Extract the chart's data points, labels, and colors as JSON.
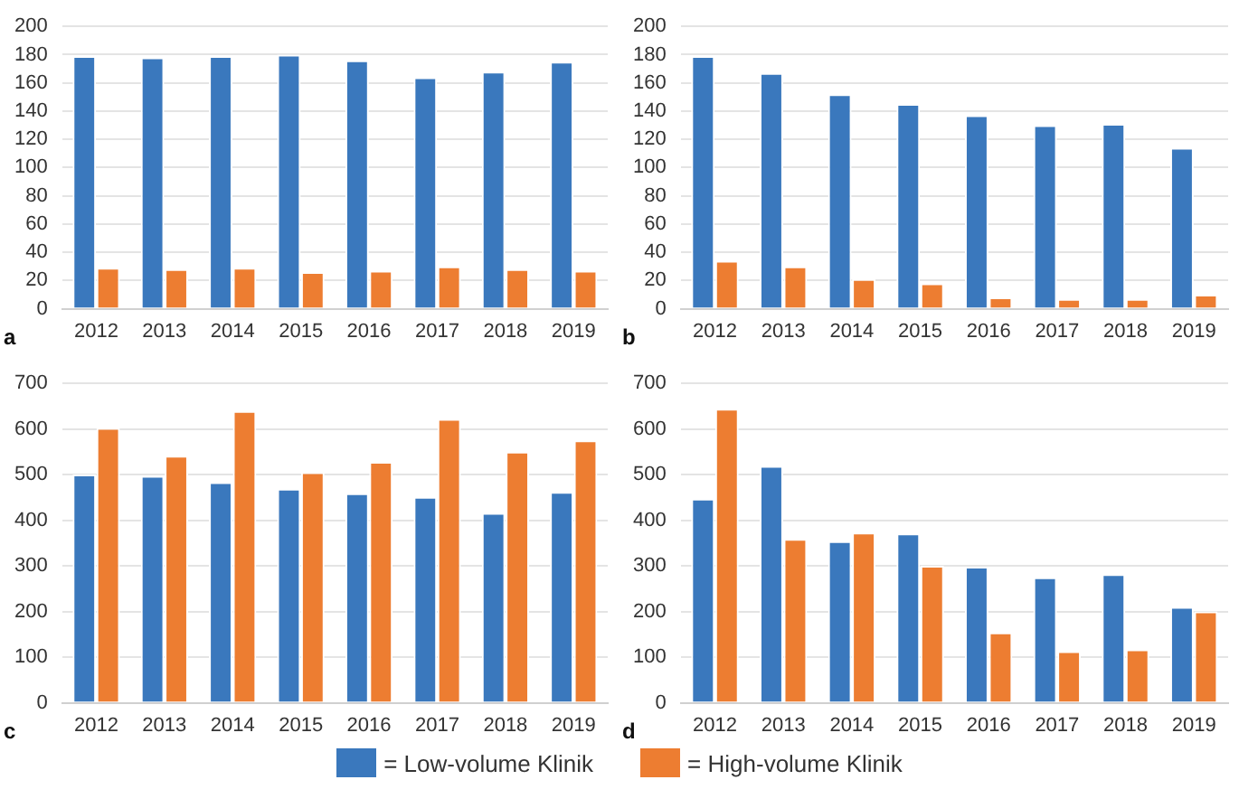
{
  "chart_data": [
    {
      "type": "bar",
      "categories": [
        "2012",
        "2013",
        "2014",
        "2015",
        "2016",
        "2017",
        "2018",
        "2019"
      ],
      "annotations": [
        "a"
      ],
      "ylim": [
        0,
        200
      ],
      "yticks": [
        0,
        20,
        40,
        60,
        80,
        100,
        120,
        140,
        160,
        180,
        200
      ],
      "grid": "y",
      "legend": false,
      "series": [
        {
          "color": "#3a78bd",
          "values": [
            179,
            178,
            179,
            180,
            176,
            164,
            168,
            175
          ]
        },
        {
          "color": "#ed7d31",
          "values": [
            29,
            28,
            29,
            26,
            27,
            30,
            28,
            27
          ]
        }
      ]
    },
    {
      "type": "bar",
      "categories": [
        "2012",
        "2013",
        "2014",
        "2015",
        "2016",
        "2017",
        "2018",
        "2019"
      ],
      "annotations": [
        "b"
      ],
      "ylim": [
        0,
        200
      ],
      "yticks": [
        0,
        20,
        40,
        60,
        80,
        100,
        120,
        140,
        160,
        180,
        200
      ],
      "grid": "y",
      "legend": false,
      "series": [
        {
          "color": "#3a78bd",
          "values": [
            179,
            167,
            152,
            145,
            137,
            130,
            131,
            114
          ]
        },
        {
          "color": "#ed7d31",
          "values": [
            34,
            30,
            21,
            18,
            8,
            7,
            7,
            10
          ]
        }
      ]
    },
    {
      "type": "bar",
      "categories": [
        "2012",
        "2013",
        "2014",
        "2015",
        "2016",
        "2017",
        "2018",
        "2019"
      ],
      "annotations": [
        "c"
      ],
      "ylim": [
        0,
        700
      ],
      "yticks": [
        0,
        100,
        200,
        300,
        400,
        500,
        600,
        700
      ],
      "grid": "y",
      "legend": false,
      "series": [
        {
          "color": "#3a78bd",
          "values": [
            500,
            497,
            483,
            469,
            459,
            451,
            416,
            462
          ]
        },
        {
          "color": "#ed7d31",
          "values": [
            602,
            541,
            639,
            505,
            528,
            622,
            550,
            575
          ]
        }
      ]
    },
    {
      "type": "bar",
      "categories": [
        "2012",
        "2013",
        "2014",
        "2015",
        "2016",
        "2017",
        "2018",
        "2019"
      ],
      "annotations": [
        "d"
      ],
      "ylim": [
        0,
        700
      ],
      "yticks": [
        0,
        100,
        200,
        300,
        400,
        500,
        600,
        700
      ],
      "grid": "y",
      "legend": "bottom",
      "series": [
        {
          "name": "= Low-volume Klinik",
          "color": "#3a78bd",
          "values": [
            447,
            519,
            354,
            371,
            298,
            275,
            282,
            210
          ]
        },
        {
          "name": "= High-volume Klinik",
          "color": "#ed7d31",
          "values": [
            644,
            359,
            373,
            300,
            154,
            113,
            117,
            200
          ]
        }
      ]
    }
  ]
}
